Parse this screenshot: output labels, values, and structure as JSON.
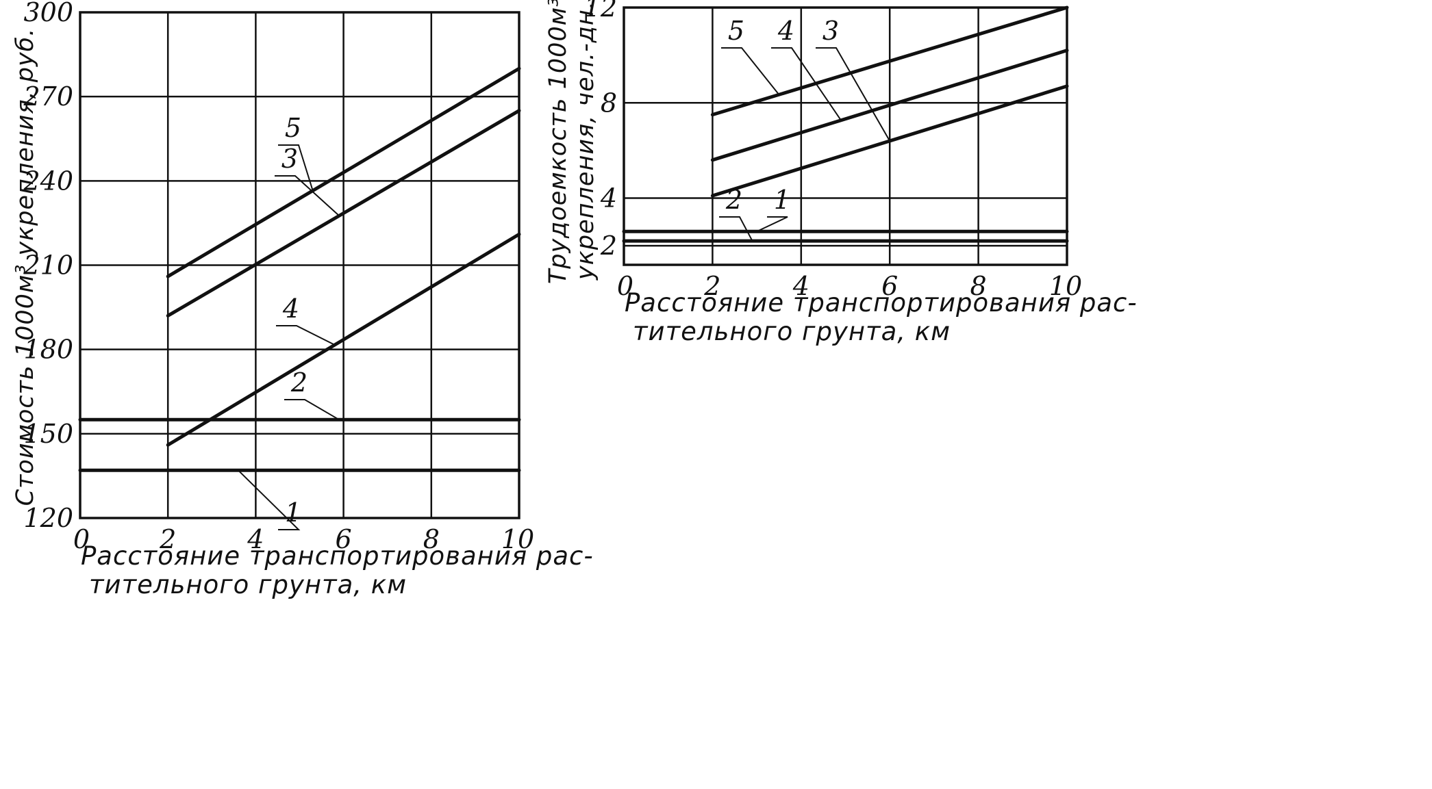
{
  "chart_data": [
    {
      "type": "line",
      "xlabel_line1": "Расстояние транспортирования рас-",
      "xlabel_line2": "тительного грунта, км",
      "ylabel": "Стоимость 1000м³ укрепления, руб.",
      "xlim": [
        0,
        10
      ],
      "ylim": [
        120,
        300
      ],
      "xticks": [
        "0",
        "2",
        "4",
        "6",
        "8",
        "10"
      ],
      "yticks": [
        "120",
        "150",
        "180",
        "210",
        "240",
        "270",
        "300"
      ],
      "grid": true,
      "series": [
        {
          "name": "1",
          "x": [
            0,
            10
          ],
          "y": [
            137,
            137
          ]
        },
        {
          "name": "2",
          "x": [
            0,
            10
          ],
          "y": [
            155,
            155
          ]
        },
        {
          "name": "3",
          "x": [
            2,
            10
          ],
          "y": [
            192,
            265
          ]
        },
        {
          "name": "4",
          "x": [
            2,
            10
          ],
          "y": [
            146,
            221
          ]
        },
        {
          "name": "5",
          "x": [
            2,
            10
          ],
          "y": [
            206,
            280
          ]
        }
      ]
    },
    {
      "type": "line",
      "xlabel_line1": "Расстояние транспортирования рас-",
      "xlabel_line2": "тительного грунта, км",
      "ylabel_line1": "Трудоемкость 1000м³",
      "ylabel_line2": "укрепления, чел.-дн.",
      "xlim": [
        0,
        10
      ],
      "ylim": [
        1.2,
        12
      ],
      "xticks": [
        "0",
        "2",
        "4",
        "6",
        "8",
        "10"
      ],
      "yticks": [
        "2",
        "4",
        "8",
        "12"
      ],
      "grid": true,
      "series": [
        {
          "name": "1",
          "x": [
            0,
            10
          ],
          "y": [
            2.6,
            2.6
          ]
        },
        {
          "name": "2",
          "x": [
            0,
            10
          ],
          "y": [
            2.2,
            2.2
          ]
        },
        {
          "name": "3",
          "x": [
            2,
            10
          ],
          "y": [
            4.1,
            8.7
          ]
        },
        {
          "name": "4",
          "x": [
            2,
            10
          ],
          "y": [
            5.6,
            10.2
          ]
        },
        {
          "name": "5",
          "x": [
            2,
            10
          ],
          "y": [
            7.5,
            12
          ]
        }
      ]
    }
  ]
}
